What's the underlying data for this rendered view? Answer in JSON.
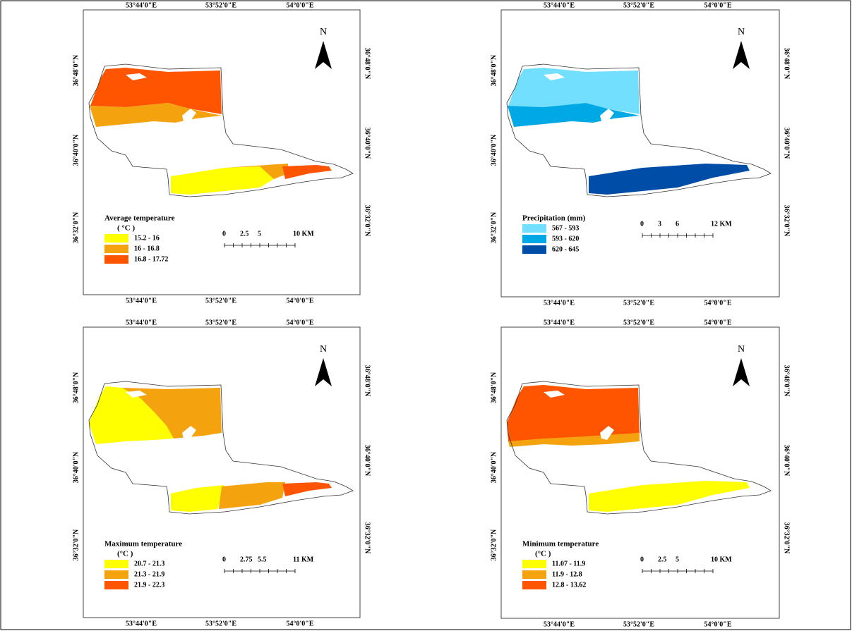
{
  "panels": [
    {
      "top_labels": [
        "53°44'0\"E",
        "53°52'0\"E",
        "54°0'0\"E"
      ],
      "bottom_labels": [
        "53°44'0\"E",
        "53°52'0\"E",
        "54°0'0\"E"
      ],
      "left_labels": [
        "36°48'0\"N",
        "36°40'0\"N",
        "36°32'0\"N"
      ],
      "right_labels": [
        "36°48'0\"N",
        "36°40'0\"N",
        "36°32'0\"N"
      ],
      "north": "N",
      "legend_title": "Average temperature",
      "legend_unit": "( °C )",
      "legend_items": [
        {
          "label": "15.2 - 16",
          "color": "#ffff00"
        },
        {
          "label": "16 - 16.8",
          "color": "#f5a20f"
        },
        {
          "label": "16.8 - 17.72",
          "color": "#ff5500"
        }
      ],
      "scale_labels": [
        "0",
        "2.5",
        "5",
        "10 KM"
      ]
    },
    {
      "top_labels": [
        "53°44'0\"E",
        "53°52'0\"E",
        "54°0'0\"E"
      ],
      "bottom_labels": [
        "53°44'0\"E",
        "53°52'0\"E",
        "54°0'0\"E"
      ],
      "left_labels": [
        "36°48'0\"N",
        "36°40'0\"N",
        "36°32'0\"N"
      ],
      "right_labels": [
        "36°48'0\"N",
        "36°40'0\"N",
        "36°32'0\"N"
      ],
      "north": "N",
      "legend_title": "Precipitation (mm)",
      "legend_items": [
        {
          "label": "567 - 593",
          "color": "#73dfff"
        },
        {
          "label": "593 - 620",
          "color": "#00a9e6"
        },
        {
          "label": "620 - 645",
          "color": "#004da8"
        }
      ],
      "scale_labels": [
        "0",
        "3",
        "6",
        "12 KM"
      ]
    },
    {
      "top_labels": [
        "53°44'0\"E",
        "53°52'0\"E",
        "54°0'0\"E"
      ],
      "bottom_labels": [
        "53°44'0\"E",
        "53°52'0\"E",
        "54°0'0\"E"
      ],
      "left_labels": [
        "36°48'0\"N",
        "36°40'0\"N",
        "36°32'0\"N"
      ],
      "right_labels": [
        "36°48'0\"N",
        "36°40'0\"N",
        "36°32'0\"N"
      ],
      "north": "N",
      "legend_title": "Maximum temperature",
      "legend_unit": "(°C )",
      "legend_items": [
        {
          "label": "20.7 - 21.3",
          "color": "#ffff00"
        },
        {
          "label": "21.3 - 21.9",
          "color": "#f5a20f"
        },
        {
          "label": "21.9 - 22.3",
          "color": "#ff5500"
        }
      ],
      "scale_labels": [
        "0",
        "2.75",
        "5.5",
        "11 KM"
      ]
    },
    {
      "top_labels": [
        "53°44'0\"E",
        "53°52'0\"E",
        "54°0'0\"E"
      ],
      "bottom_labels": [
        "53°44'0\"E",
        "53°52'0\"E",
        "54°0'0\"E"
      ],
      "left_labels": [
        "36°48'0\"N",
        "36°40'0\"N",
        "36°32'0\"N"
      ],
      "right_labels": [
        "36°48'0\"N",
        "36°40'0\"N",
        "36°32'0\"N"
      ],
      "north": "N",
      "legend_title": "Minimum temperature",
      "legend_unit": "(°C )",
      "legend_items": [
        {
          "label": "11.07 - 11.9",
          "color": "#ffff00"
        },
        {
          "label": "11.9 - 12.8",
          "color": "#f5a20f"
        },
        {
          "label": "12.8 - 13.62",
          "color": "#ff5500"
        }
      ],
      "scale_labels": [
        "0",
        "2.5",
        "5",
        "10 KM"
      ]
    }
  ]
}
